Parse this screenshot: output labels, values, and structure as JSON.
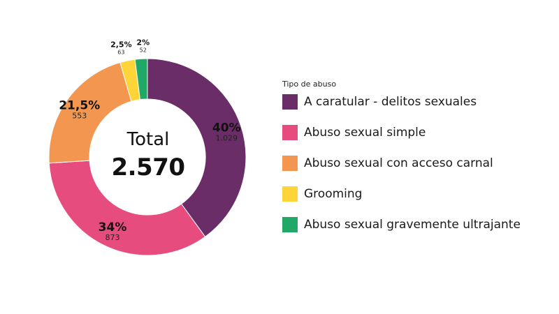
{
  "center": {
    "title": "Total",
    "value": "2.570"
  },
  "legend": {
    "title": "Tipo de abuso"
  },
  "chart_data": {
    "type": "pie",
    "variant": "donut",
    "total": 2570,
    "legend_title": "Tipo de abuso",
    "legend_position": "right",
    "slices": [
      {
        "name": "A caratular - delitos sexuales",
        "value": 1029,
        "percent": 40,
        "percent_label": "40%",
        "value_label": "1.029",
        "color": "#6b2d67"
      },
      {
        "name": "Abuso sexual simple",
        "value": 873,
        "percent": 34,
        "percent_label": "34%",
        "value_label": "873",
        "color": "#e74c7e"
      },
      {
        "name": "Abuso sexual con acceso carnal",
        "value": 553,
        "percent": 21.5,
        "percent_label": "21,5%",
        "value_label": "553",
        "color": "#f39750"
      },
      {
        "name": "Grooming",
        "value": 63,
        "percent": 2.5,
        "percent_label": "2,5%",
        "value_label": "63",
        "color": "#fed439"
      },
      {
        "name": "Abuso sexual gravemente ultrajante",
        "value": 52,
        "percent": 2,
        "percent_label": "2%",
        "value_label": "52",
        "color": "#1fa866"
      }
    ]
  }
}
